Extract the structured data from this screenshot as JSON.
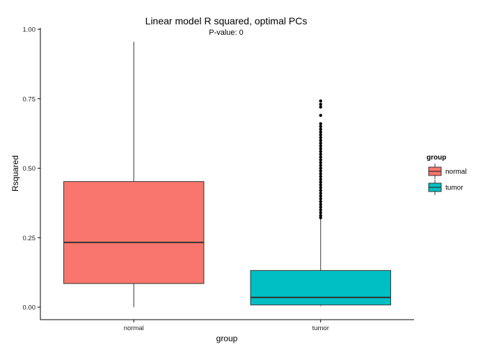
{
  "chart_data": {
    "type": "boxplot",
    "title": "Linear model R squared, optimal PCs",
    "subtitle": "P-value: 0",
    "xlabel": "group",
    "ylabel": "Rsquared",
    "ylim": [
      -0.045,
      1.005
    ],
    "yticks": [
      0.0,
      0.25,
      0.5,
      0.75,
      1.0
    ],
    "ytick_labels": [
      "0.00",
      "0.25",
      "0.50",
      "0.75",
      "1.00"
    ],
    "categories": [
      "normal",
      "tumor"
    ],
    "boxes": [
      {
        "name": "normal",
        "min": 0.0,
        "q1": 0.085,
        "median": 0.233,
        "q3": 0.452,
        "max": 0.955,
        "color": "#F8766D",
        "outliers": []
      },
      {
        "name": "tumor",
        "min": 0.004,
        "q1": 0.008,
        "median": 0.035,
        "q3": 0.132,
        "max": 0.32,
        "color": "#00BFC4",
        "outliers": [
          0.322,
          0.33,
          0.34,
          0.35,
          0.36,
          0.37,
          0.38,
          0.39,
          0.4,
          0.41,
          0.42,
          0.43,
          0.44,
          0.45,
          0.46,
          0.47,
          0.48,
          0.49,
          0.5,
          0.51,
          0.52,
          0.53,
          0.54,
          0.55,
          0.56,
          0.57,
          0.58,
          0.59,
          0.6,
          0.61,
          0.62,
          0.63,
          0.64,
          0.65,
          0.66,
          0.69,
          0.72,
          0.73,
          0.742
        ]
      }
    ],
    "legend": {
      "title": "group",
      "placement": "right",
      "entries": [
        {
          "label": "normal",
          "color": "#F8766D"
        },
        {
          "label": "tumor",
          "color": "#00BFC4"
        }
      ]
    },
    "grid": false
  }
}
